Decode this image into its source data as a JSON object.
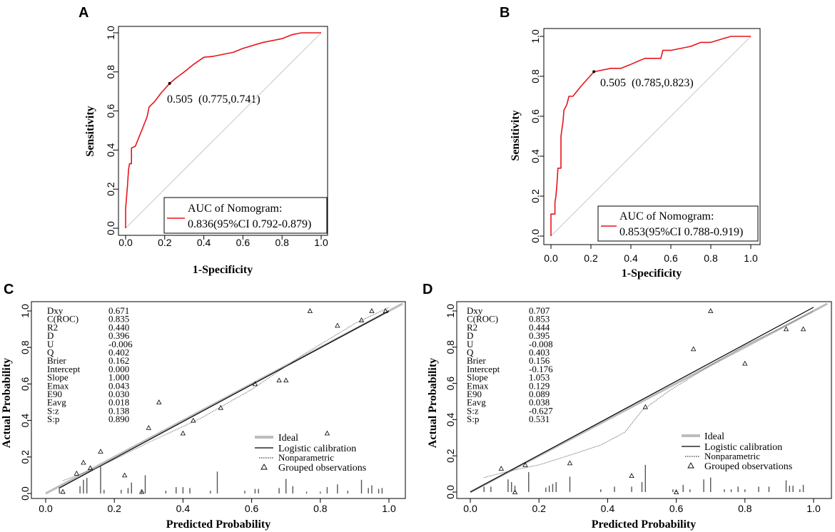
{
  "chart_data": [
    {
      "panel": "A",
      "type": "line",
      "xlabel": "1-Specificity",
      "ylabel": "Sensitivity",
      "xlim": [
        0,
        1
      ],
      "ylim": [
        0,
        1
      ],
      "xticks": [
        "0.0",
        "0.2",
        "0.4",
        "0.6",
        "0.8",
        "1.0"
      ],
      "yticks": [
        "0.0",
        "0.2",
        "0.4",
        "0.6",
        "0.8",
        "1.0"
      ],
      "roc": [
        [
          0,
          0
        ],
        [
          0,
          0.1
        ],
        [
          0.01,
          0.22
        ],
        [
          0.015,
          0.3
        ],
        [
          0.02,
          0.33
        ],
        [
          0.03,
          0.33
        ],
        [
          0.03,
          0.41
        ],
        [
          0.05,
          0.42
        ],
        [
          0.07,
          0.47
        ],
        [
          0.09,
          0.52
        ],
        [
          0.11,
          0.57
        ],
        [
          0.12,
          0.62
        ],
        [
          0.15,
          0.65
        ],
        [
          0.18,
          0.69
        ],
        [
          0.225,
          0.741
        ],
        [
          0.26,
          0.77
        ],
        [
          0.3,
          0.8
        ],
        [
          0.35,
          0.84
        ],
        [
          0.4,
          0.875
        ],
        [
          0.45,
          0.88
        ],
        [
          0.5,
          0.89
        ],
        [
          0.55,
          0.9
        ],
        [
          0.6,
          0.92
        ],
        [
          0.7,
          0.95
        ],
        [
          0.8,
          0.97
        ],
        [
          0.85,
          0.99
        ],
        [
          0.9,
          1.0
        ],
        [
          1.0,
          1.0
        ]
      ],
      "cutoff_point": [
        0.225,
        0.741
      ],
      "cutoff_label": "0.505  (0.775,0.741)",
      "legend_title": "AUC of Nomogram:",
      "legend_value": "0.836(95%CI 0.792-0.879)"
    },
    {
      "panel": "B",
      "type": "line",
      "xlabel": "1-Specificity",
      "ylabel": "Sensitivity",
      "xlim": [
        0,
        1
      ],
      "ylim": [
        0,
        1
      ],
      "xticks": [
        "0.0",
        "0.2",
        "0.4",
        "0.6",
        "0.8",
        "1.0"
      ],
      "yticks": [
        "0.0",
        "0.2",
        "0.4",
        "0.6",
        "0.8",
        "1.0"
      ],
      "roc": [
        [
          0,
          0
        ],
        [
          0,
          0.11
        ],
        [
          0.02,
          0.11
        ],
        [
          0.02,
          0.17
        ],
        [
          0.025,
          0.2
        ],
        [
          0.03,
          0.26
        ],
        [
          0.035,
          0.34
        ],
        [
          0.05,
          0.34
        ],
        [
          0.05,
          0.5
        ],
        [
          0.06,
          0.57
        ],
        [
          0.065,
          0.63
        ],
        [
          0.08,
          0.66
        ],
        [
          0.09,
          0.7
        ],
        [
          0.11,
          0.7
        ],
        [
          0.15,
          0.75
        ],
        [
          0.215,
          0.823
        ],
        [
          0.3,
          0.84
        ],
        [
          0.35,
          0.84
        ],
        [
          0.4,
          0.86
        ],
        [
          0.47,
          0.89
        ],
        [
          0.55,
          0.89
        ],
        [
          0.56,
          0.93
        ],
        [
          0.6,
          0.93
        ],
        [
          0.7,
          0.95
        ],
        [
          0.75,
          0.97
        ],
        [
          0.8,
          0.97
        ],
        [
          0.9,
          1.0
        ],
        [
          1.0,
          1.0
        ]
      ],
      "cutoff_point": [
        0.215,
        0.823
      ],
      "cutoff_label": "0.505  (0.785,0.823)",
      "legend_title": "AUC of Nomogram:",
      "legend_value": "0.853(95%CI 0.788-0.919)"
    },
    {
      "panel": "C",
      "type": "line",
      "xlabel": "Predicted Probability",
      "ylabel": "Actual Probability",
      "xlim": [
        0,
        1
      ],
      "ylim": [
        0,
        1
      ],
      "xticks": [
        "0.0",
        "0.2",
        "0.4",
        "0.6",
        "0.8",
        "1.0"
      ],
      "yticks": [
        "0.0",
        "0.2",
        "0.4",
        "0.6",
        "0.8",
        "1.0"
      ],
      "stats": [
        [
          "Dxy",
          "0.671"
        ],
        [
          "C(ROC)",
          "0.835"
        ],
        [
          "R2",
          "0.440"
        ],
        [
          "D",
          "0.396"
        ],
        [
          "U",
          "-0.006"
        ],
        [
          "Q",
          "0.402"
        ],
        [
          "Brier",
          "0.162"
        ],
        [
          "Intercept",
          "0.000"
        ],
        [
          "Slope",
          "1.000"
        ],
        [
          "Emax",
          "0.043"
        ],
        [
          "E90",
          "0.030"
        ],
        [
          "Eavg",
          "0.018"
        ],
        [
          "S:z",
          "0.138"
        ],
        [
          "S:p",
          "0.890"
        ]
      ],
      "legend": [
        "Ideal",
        "Logistic calibration",
        "Nonparametric",
        "Grouped observations"
      ],
      "logistic": [
        [
          0.04,
          0.03
        ],
        [
          1.0,
          1.0
        ]
      ],
      "nonparametric": [
        [
          0.05,
          0.07
        ],
        [
          0.15,
          0.14
        ],
        [
          0.3,
          0.28
        ],
        [
          0.45,
          0.41
        ],
        [
          0.6,
          0.57
        ],
        [
          0.75,
          0.76
        ],
        [
          0.9,
          0.93
        ],
        [
          1.0,
          1.02
        ]
      ],
      "grouped": [
        [
          0.05,
          0.01
        ],
        [
          0.09,
          0.11
        ],
        [
          0.11,
          0.17
        ],
        [
          0.13,
          0.14
        ],
        [
          0.16,
          0.23
        ],
        [
          0.23,
          0.1
        ],
        [
          0.28,
          0.01
        ],
        [
          0.3,
          0.36
        ],
        [
          0.33,
          0.5
        ],
        [
          0.4,
          0.33
        ],
        [
          0.43,
          0.4
        ],
        [
          0.51,
          0.47
        ],
        [
          0.61,
          0.6
        ],
        [
          0.68,
          0.62
        ],
        [
          0.7,
          0.62
        ],
        [
          0.77,
          1.0
        ],
        [
          0.82,
          0.33
        ],
        [
          0.85,
          0.92
        ],
        [
          0.92,
          0.95
        ],
        [
          0.95,
          1.0
        ],
        [
          0.99,
          1.0
        ]
      ],
      "spikes": [
        [
          0.04,
          0.035
        ],
        [
          0.1,
          0.04
        ],
        [
          0.11,
          0.075
        ],
        [
          0.12,
          0.085
        ],
        [
          0.16,
          0.15
        ],
        [
          0.17,
          0.02
        ],
        [
          0.22,
          0.02
        ],
        [
          0.24,
          0.03
        ],
        [
          0.25,
          0.06
        ],
        [
          0.28,
          0.02
        ],
        [
          0.29,
          0.1
        ],
        [
          0.35,
          0.015
        ],
        [
          0.38,
          0.035
        ],
        [
          0.4,
          0.035
        ],
        [
          0.42,
          0.03
        ],
        [
          0.48,
          0.015
        ],
        [
          0.5,
          0.12
        ],
        [
          0.58,
          0.015
        ],
        [
          0.61,
          0.025
        ],
        [
          0.62,
          0.025
        ],
        [
          0.68,
          0.03
        ],
        [
          0.7,
          0.08
        ],
        [
          0.72,
          0.04
        ],
        [
          0.76,
          0.01
        ],
        [
          0.8,
          0.01
        ],
        [
          0.82,
          0.035
        ],
        [
          0.85,
          0.05
        ],
        [
          0.88,
          0.015
        ],
        [
          0.92,
          0.075
        ],
        [
          0.94,
          0.03
        ],
        [
          0.95,
          0.045
        ],
        [
          0.97,
          0.025
        ],
        [
          0.98,
          0.03
        ]
      ]
    },
    {
      "panel": "D",
      "type": "line",
      "xlabel": "Predicted Probability",
      "ylabel": "Actual Probability",
      "xlim": [
        0,
        1
      ],
      "ylim": [
        0,
        1
      ],
      "xticks": [
        "0.0",
        "0.2",
        "0.4",
        "0.6",
        "0.8",
        "1.0"
      ],
      "yticks": [
        "0.0",
        "0.2",
        "0.4",
        "0.6",
        "0.8",
        "1.0"
      ],
      "stats": [
        [
          "Dxy",
          "0.707"
        ],
        [
          "C(ROC)",
          "0.853"
        ],
        [
          "R2",
          "0.444"
        ],
        [
          "D",
          "0.395"
        ],
        [
          "U",
          "-0.008"
        ],
        [
          "Q",
          "0.403"
        ],
        [
          "Brier",
          "0.156"
        ],
        [
          "Intercept",
          "-0.176"
        ],
        [
          "Slope",
          "1.053"
        ],
        [
          "Emax",
          "0.129"
        ],
        [
          "E90",
          "0.089"
        ],
        [
          "Eavg",
          "0.038"
        ],
        [
          "S:z",
          "-0.627"
        ],
        [
          "S:p",
          "0.531"
        ]
      ],
      "legend": [
        "Ideal",
        "Logistic calibration",
        "Nonparametric",
        "Grouped observations"
      ],
      "logistic": [
        [
          0.0,
          0.0
        ],
        [
          1.0,
          1.02
        ]
      ],
      "nonparametric": [
        [
          0.04,
          0.08
        ],
        [
          0.1,
          0.11
        ],
        [
          0.2,
          0.15
        ],
        [
          0.3,
          0.21
        ],
        [
          0.38,
          0.26
        ],
        [
          0.45,
          0.33
        ],
        [
          0.5,
          0.45
        ],
        [
          0.58,
          0.56
        ],
        [
          0.7,
          0.7
        ],
        [
          0.8,
          0.81
        ],
        [
          0.9,
          0.9
        ],
        [
          1.0,
          1.0
        ]
      ],
      "grouped": [
        [
          0.09,
          0.13
        ],
        [
          0.13,
          0.0
        ],
        [
          0.16,
          0.15
        ],
        [
          0.29,
          0.16
        ],
        [
          0.47,
          0.09
        ],
        [
          0.51,
          0.47
        ],
        [
          0.6,
          0.0
        ],
        [
          0.65,
          0.79
        ],
        [
          0.7,
          1.0
        ],
        [
          0.8,
          0.71
        ],
        [
          0.92,
          0.9
        ],
        [
          0.97,
          0.9
        ]
      ],
      "spikes": [
        [
          0.04,
          0.03
        ],
        [
          0.06,
          0.03
        ],
        [
          0.11,
          0.07
        ],
        [
          0.12,
          0.055
        ],
        [
          0.13,
          0.035
        ],
        [
          0.17,
          0.11
        ],
        [
          0.22,
          0.025
        ],
        [
          0.23,
          0.035
        ],
        [
          0.24,
          0.045
        ],
        [
          0.25,
          0.055
        ],
        [
          0.29,
          0.085
        ],
        [
          0.38,
          0.015
        ],
        [
          0.42,
          0.03
        ],
        [
          0.47,
          0.03
        ],
        [
          0.5,
          0.055
        ],
        [
          0.51,
          0.15
        ],
        [
          0.59,
          0.015
        ],
        [
          0.6,
          0.015
        ],
        [
          0.62,
          0.04
        ],
        [
          0.64,
          0.015
        ],
        [
          0.68,
          0.07
        ],
        [
          0.7,
          0.08
        ],
        [
          0.74,
          0.015
        ],
        [
          0.76,
          0.015
        ],
        [
          0.78,
          0.03
        ],
        [
          0.8,
          0.015
        ],
        [
          0.84,
          0.03
        ],
        [
          0.87,
          0.03
        ],
        [
          0.92,
          0.065
        ],
        [
          0.93,
          0.035
        ],
        [
          0.94,
          0.035
        ],
        [
          0.96,
          0.015
        ],
        [
          0.97,
          0.04
        ]
      ]
    }
  ]
}
